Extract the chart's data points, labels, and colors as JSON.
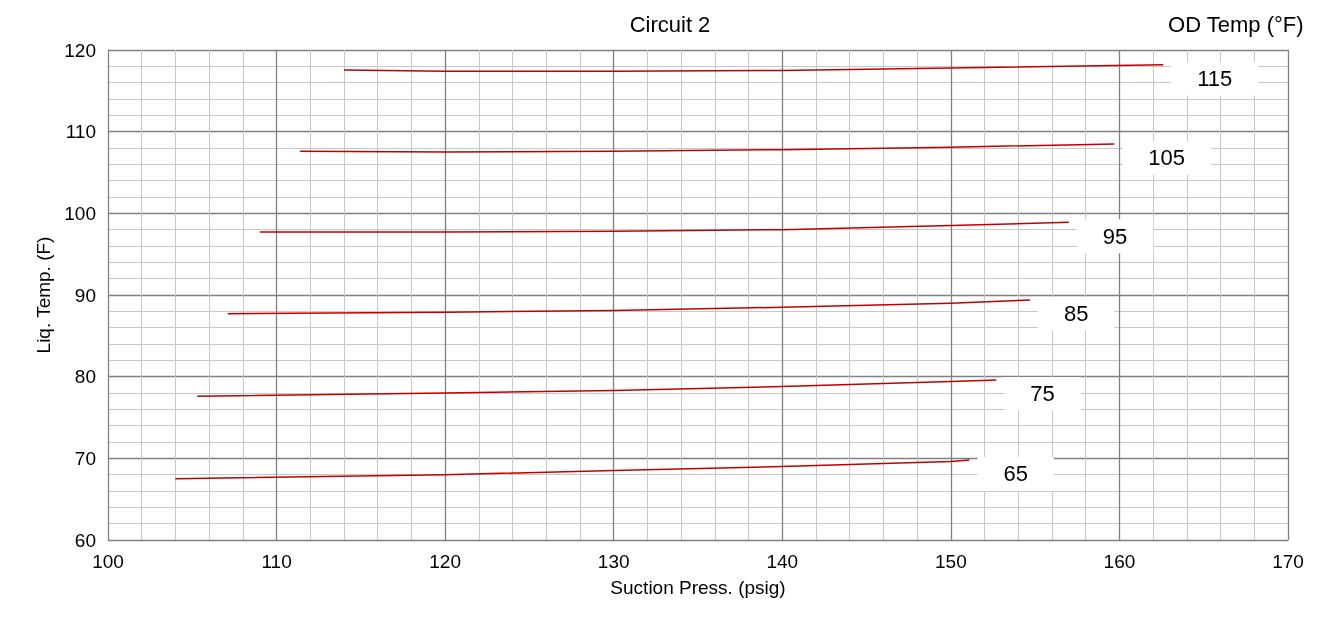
{
  "chart_data": {
    "type": "line",
    "title": "Circuit 2",
    "xlabel": "Suction Press. (psig)",
    "ylabel": "Liq. Temp. (F)",
    "legend_title": "OD Temp (°F)",
    "xlim": [
      100,
      170
    ],
    "xticks": [
      100,
      110,
      120,
      130,
      140,
      150,
      160,
      170
    ],
    "ylim": [
      60,
      120
    ],
    "yticks": [
      60,
      70,
      80,
      90,
      100,
      110,
      120
    ],
    "grid": true,
    "marker": "none",
    "line_style": "solid",
    "series": [
      {
        "name": "115",
        "color": "#c00000",
        "x": [
          114.0,
          120,
          130,
          140,
          150,
          162.6
        ],
        "values": [
          117.55,
          117.4,
          117.4,
          117.5,
          117.8,
          118.2
        ]
      },
      {
        "name": "105",
        "color": "#c00000",
        "x": [
          111.4,
          120,
          130,
          140,
          150,
          159.7
        ],
        "values": [
          107.6,
          107.5,
          107.6,
          107.8,
          108.1,
          108.5
        ]
      },
      {
        "name": "95",
        "color": "#c00000",
        "x": [
          109.0,
          120,
          130,
          140,
          150,
          157.0
        ],
        "values": [
          97.7,
          97.7,
          97.8,
          98.0,
          98.5,
          98.9
        ]
      },
      {
        "name": "85",
        "color": "#c00000",
        "x": [
          107.1,
          120,
          130,
          140,
          150,
          154.7
        ],
        "values": [
          87.7,
          87.9,
          88.1,
          88.5,
          89.0,
          89.4
        ]
      },
      {
        "name": "75",
        "color": "#c00000",
        "x": [
          105.3,
          120,
          130,
          140,
          150,
          152.7
        ],
        "values": [
          77.6,
          78.0,
          78.3,
          78.8,
          79.4,
          79.6
        ]
      },
      {
        "name": "65",
        "color": "#c00000",
        "x": [
          104.0,
          120,
          130,
          140,
          150,
          151.1
        ],
        "values": [
          67.5,
          68.0,
          68.5,
          69.0,
          69.6,
          69.8
        ]
      }
    ]
  }
}
